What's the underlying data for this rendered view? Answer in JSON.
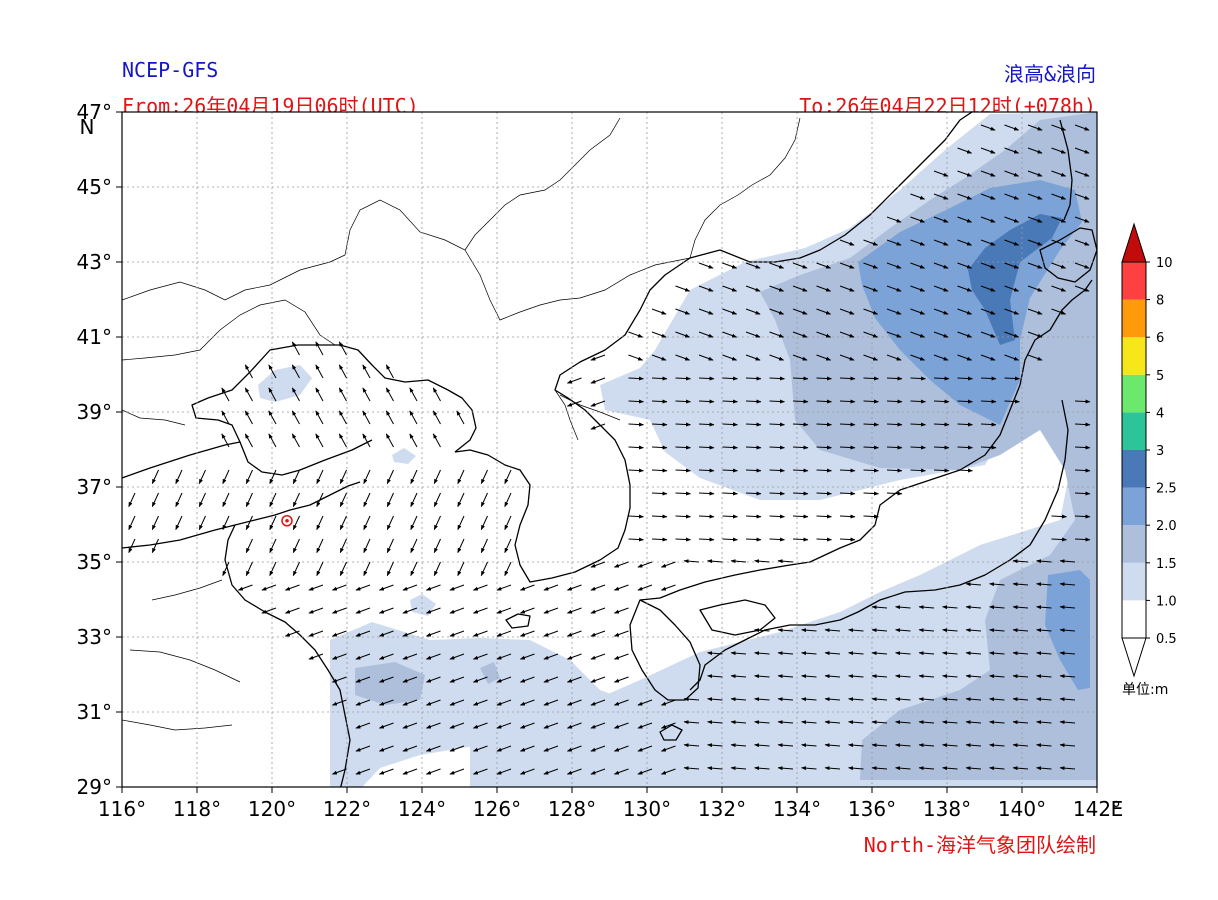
{
  "header": {
    "source": "NCEP-GFS",
    "product": "浪高&浪向",
    "from": "From:26年04月19日06时(UTC)",
    "to": "To:26年04月22日12时(+078h)"
  },
  "footer": {
    "credit": "North-海洋气象团队绘制"
  },
  "map": {
    "lon_range": [
      116,
      142
    ],
    "lat_range": [
      29,
      47
    ],
    "lon_ticks": [
      116,
      118,
      120,
      122,
      124,
      126,
      128,
      130,
      132,
      134,
      136,
      138,
      140,
      142
    ],
    "lat_ticks": [
      29,
      31,
      33,
      35,
      37,
      39,
      41,
      43,
      45,
      47
    ],
    "lon_labels": [
      "116°",
      "118°",
      "120°",
      "122°",
      "124°",
      "126°",
      "128°",
      "130°",
      "132°",
      "134°",
      "136°",
      "138°",
      "140°",
      "142°"
    ],
    "lat_labels": [
      "29°",
      "31°",
      "33°",
      "35°",
      "37°",
      "39°",
      "41°",
      "43°",
      "45°",
      "47°"
    ],
    "lon_unit": "E",
    "lat_unit": "N",
    "grid": true,
    "marker": {
      "lon": 120.4,
      "lat": 36.1,
      "color": "#e01414"
    }
  },
  "colorbar": {
    "unit_label": "单位:m",
    "levels": [
      "0.5",
      "1.0",
      "1.5",
      "2.0",
      "2.5",
      "3",
      "4",
      "5",
      "6",
      "8",
      "10"
    ],
    "colors": [
      "#ffffff",
      "#cfdcef",
      "#aebfdc",
      "#7ba3d8",
      "#4a79b8",
      "#2ec49a",
      "#6ce86c",
      "#f7e71a",
      "#ff9a0a",
      "#ff4040",
      "#c20b0b"
    ]
  },
  "colors": {
    "title_blue": "#1515c8",
    "label_red": "#e01414",
    "wave_1_0": "#cfdcef",
    "wave_1_5": "#aebfdc",
    "wave_2_0": "#7ba3d8",
    "wave_2_5": "#4a79b8"
  }
}
